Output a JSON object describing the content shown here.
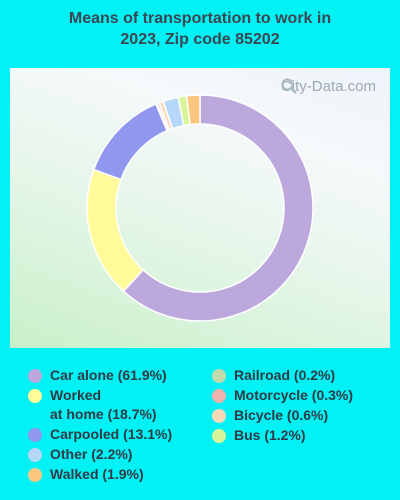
{
  "title": "Means of transportation to work in\n2023, Zip code 85202",
  "watermark": "City-Data.com",
  "chart_data": {
    "type": "pie",
    "donut": true,
    "title": "Means of transportation to work in 2023, Zip code 85202",
    "slices": [
      {
        "label": "Car alone (61.9%)",
        "name": "Car alone",
        "value": 61.9,
        "color": "#bca8dc"
      },
      {
        "label": "Worked\nat home (18.7%)",
        "name": "Worked at home",
        "value": 18.7,
        "color": "#fffb9a"
      },
      {
        "label": "Carpooled (13.1%)",
        "name": "Carpooled",
        "value": 13.1,
        "color": "#9196ef"
      },
      {
        "label": "Railroad (0.2%)",
        "name": "Railroad",
        "value": 0.2,
        "color": "#c4dbb0"
      },
      {
        "label": "Motorcycle (0.3%)",
        "name": "Motorcycle",
        "value": 0.3,
        "color": "#efb3ae"
      },
      {
        "label": "Bicycle (0.6%)",
        "name": "Bicycle",
        "value": 0.6,
        "color": "#fcd9b8"
      },
      {
        "label": "Other (2.2%)",
        "name": "Other",
        "value": 2.2,
        "color": "#b6d8f8"
      },
      {
        "label": "Bus (1.2%)",
        "name": "Bus",
        "value": 1.2,
        "color": "#d8f59a"
      },
      {
        "label": "Walked (1.9%)",
        "name": "Walked",
        "value": 1.9,
        "color": "#fcc77f"
      }
    ],
    "legend_columns": [
      [
        "Car alone",
        "Worked at home",
        "Carpooled",
        "Other",
        "Walked"
      ],
      [
        "Railroad",
        "Motorcycle",
        "Bicycle",
        "Bus"
      ]
    ]
  }
}
